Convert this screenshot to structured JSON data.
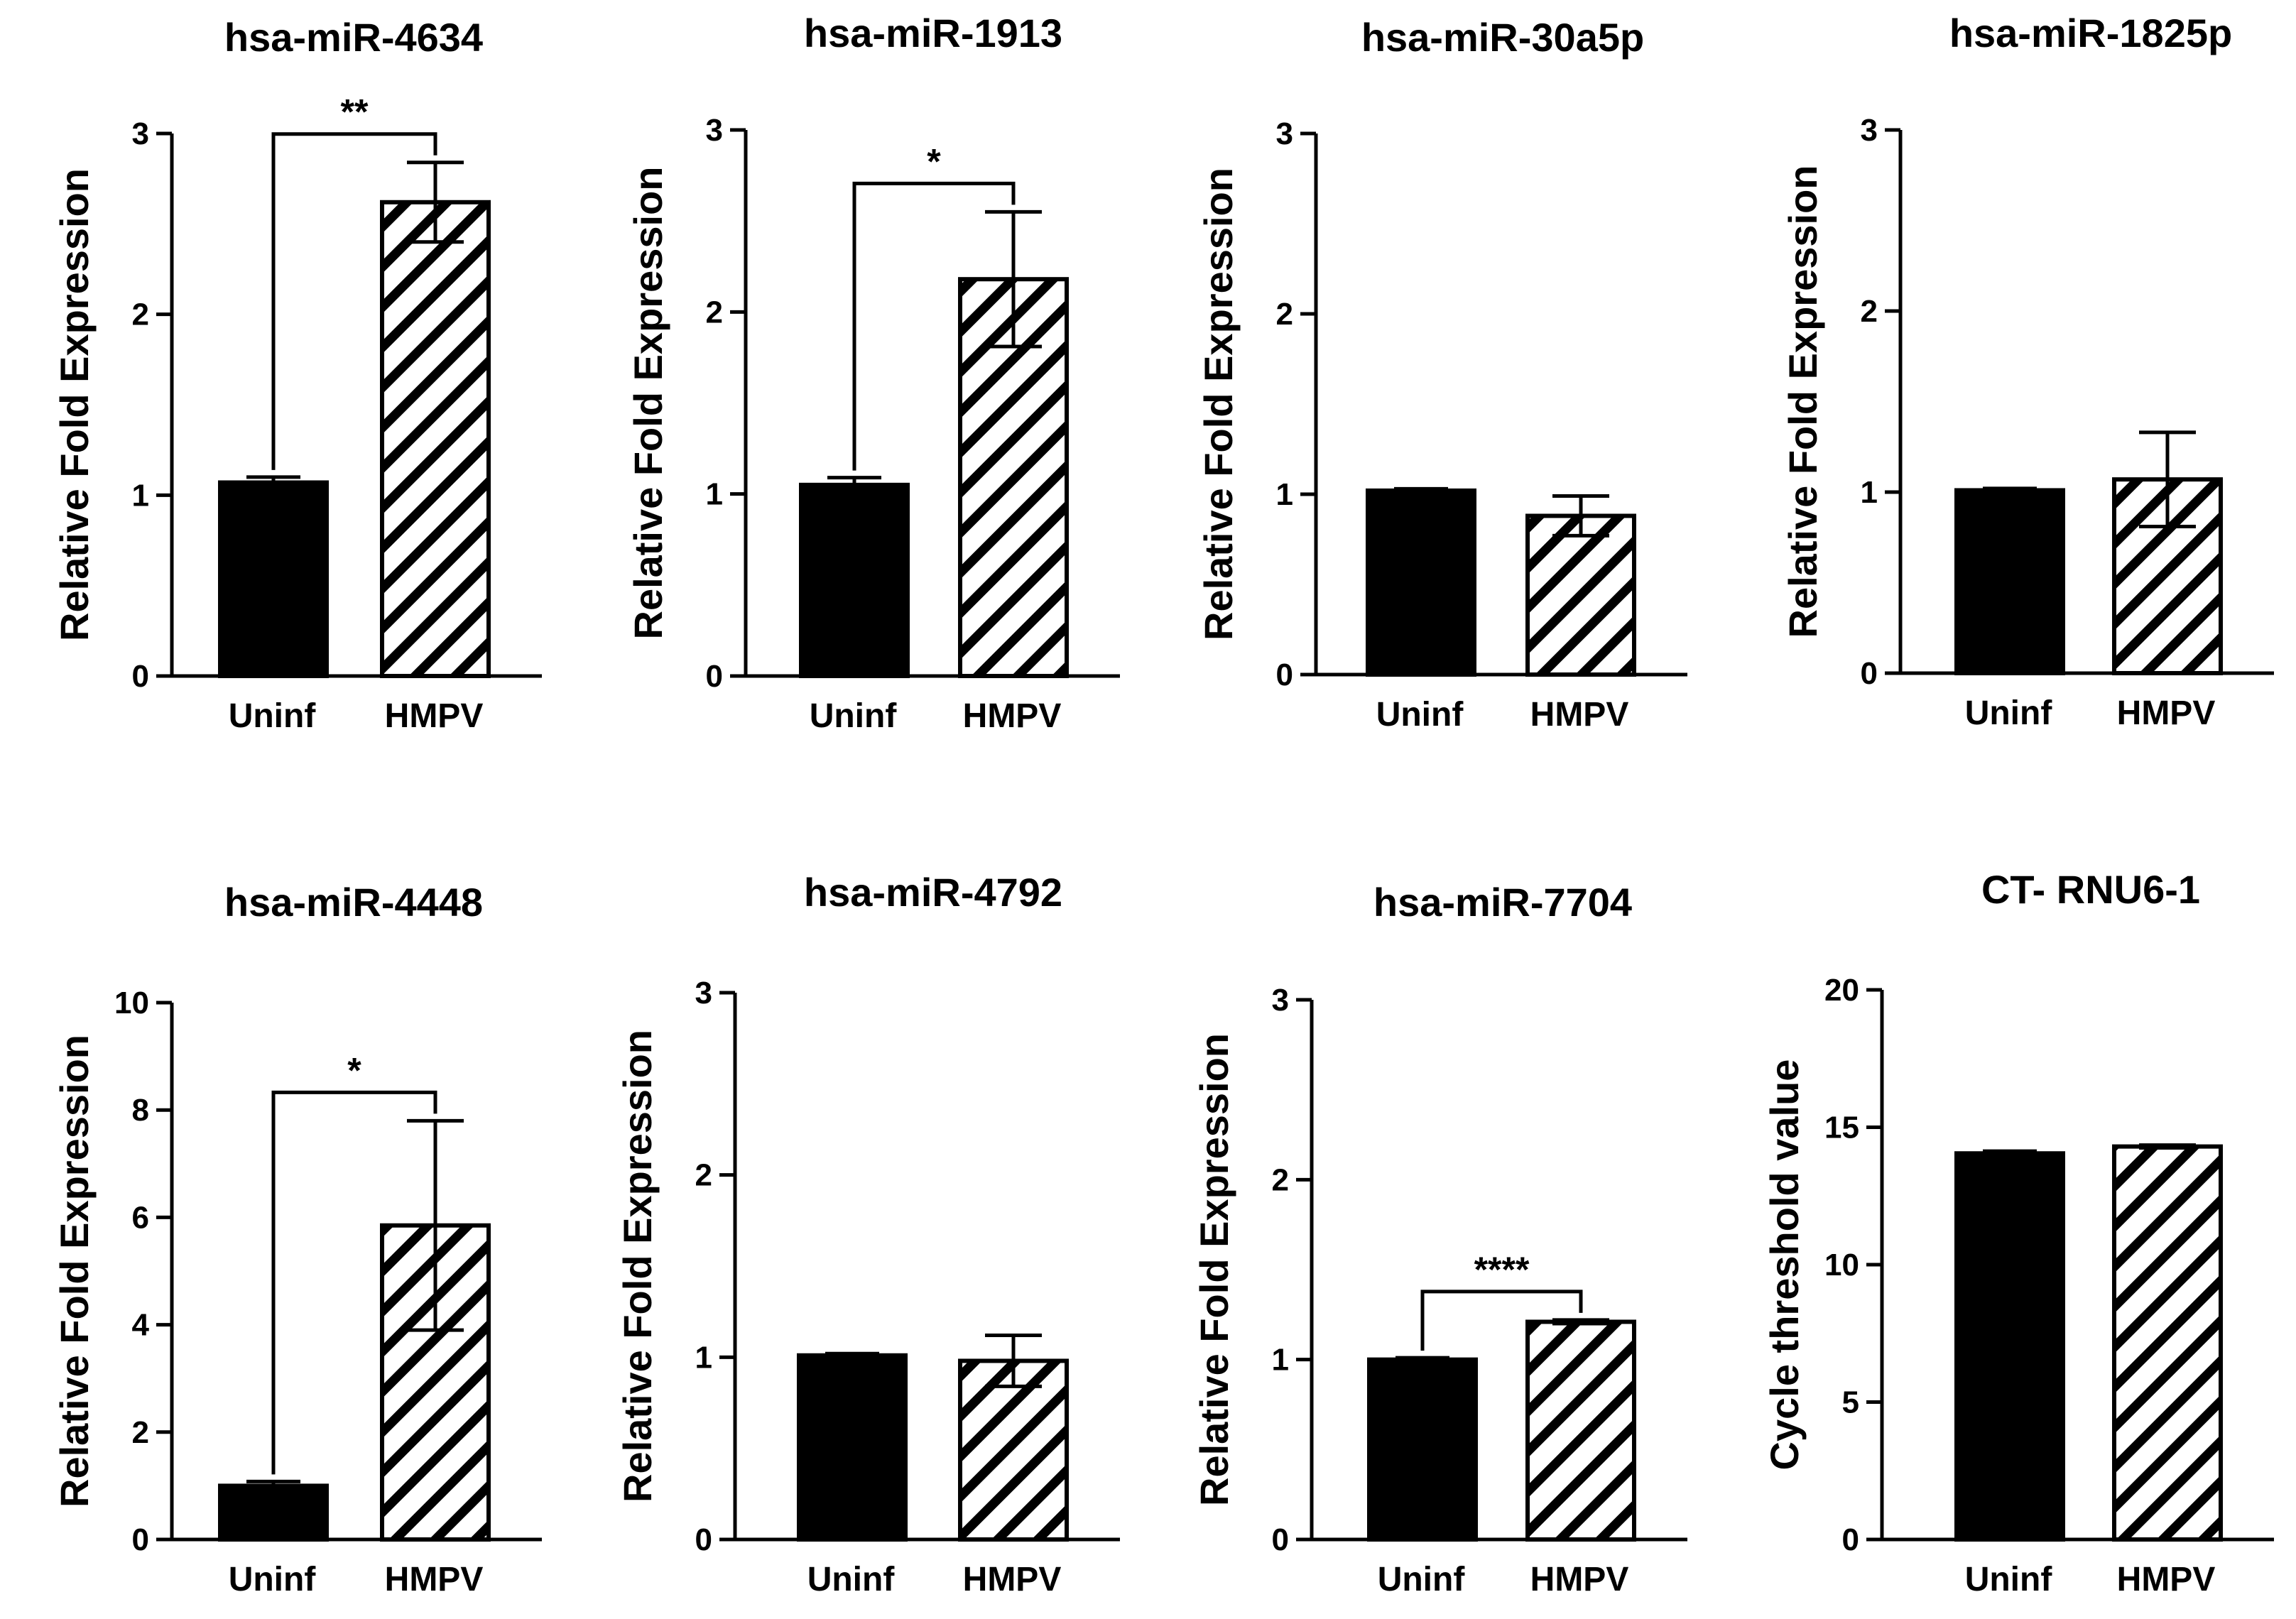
{
  "chart_data": [
    {
      "type": "bar",
      "title": "hsa-miR-4634",
      "ylabel": "Relative Fold Expression",
      "categories": [
        "Uninf",
        "HMPV"
      ],
      "values": [
        1.07,
        2.62
      ],
      "errors": [
        0.03,
        0.22
      ],
      "ylim": [
        0,
        3
      ],
      "yticks": [
        0,
        1,
        2,
        3
      ],
      "significance": "**"
    },
    {
      "type": "bar",
      "title": "hsa-miR-1913",
      "ylabel": "Relative Fold Expression",
      "categories": [
        "Uninf",
        "HMPV"
      ],
      "values": [
        1.05,
        2.18
      ],
      "errors": [
        0.04,
        0.37
      ],
      "ylim": [
        0,
        3
      ],
      "yticks": [
        0,
        1,
        2,
        3
      ],
      "significance": "*"
    },
    {
      "type": "bar",
      "title": "hsa-miR-30a5p",
      "ylabel": "Relative Fold Expression",
      "categories": [
        "Uninf",
        "HMPV"
      ],
      "values": [
        1.02,
        0.88
      ],
      "errors": [
        0.01,
        0.11
      ],
      "ylim": [
        0,
        3
      ],
      "yticks": [
        0,
        1,
        2,
        3
      ],
      "significance": ""
    },
    {
      "type": "bar",
      "title": "hsa-miR-1825p",
      "ylabel": "Relative Fold Expression",
      "categories": [
        "Uninf",
        "HMPV"
      ],
      "values": [
        1.01,
        1.07
      ],
      "errors": [
        0.01,
        0.26
      ],
      "ylim": [
        0,
        3
      ],
      "yticks": [
        0,
        1,
        2,
        3
      ],
      "significance": ""
    },
    {
      "type": "bar",
      "title": "hsa-miR-4448",
      "ylabel": "Relative Fold Expression",
      "categories": [
        "Uninf",
        "HMPV"
      ],
      "values": [
        1.0,
        5.85
      ],
      "errors": [
        0.08,
        1.95
      ],
      "ylim": [
        0,
        10
      ],
      "yticks": [
        0,
        2,
        4,
        6,
        8,
        10
      ],
      "significance": "*"
    },
    {
      "type": "bar",
      "title": "hsa-miR-4792",
      "ylabel": "Relative Fold Expression",
      "categories": [
        "Uninf",
        "HMPV"
      ],
      "values": [
        1.01,
        0.98
      ],
      "errors": [
        0.01,
        0.14
      ],
      "ylim": [
        0,
        3
      ],
      "yticks": [
        0,
        1,
        2,
        3
      ],
      "significance": ""
    },
    {
      "type": "bar",
      "title": "hsa-miR-7704",
      "ylabel": "Relative Fold Expression",
      "categories": [
        "Uninf",
        "HMPV"
      ],
      "values": [
        1.0,
        1.21
      ],
      "errors": [
        0.01,
        0.01
      ],
      "ylim": [
        0,
        3
      ],
      "yticks": [
        0,
        1,
        2,
        3
      ],
      "significance": "****"
    },
    {
      "type": "bar",
      "title": "CT- RNU6-1",
      "ylabel": "Cycle threshold value",
      "categories": [
        "Uninf",
        "HMPV"
      ],
      "values": [
        14.05,
        14.3
      ],
      "errors": [
        0.08,
        0.05
      ],
      "ylim": [
        0,
        20
      ],
      "yticks": [
        0,
        5,
        10,
        15,
        20
      ],
      "significance": ""
    }
  ]
}
